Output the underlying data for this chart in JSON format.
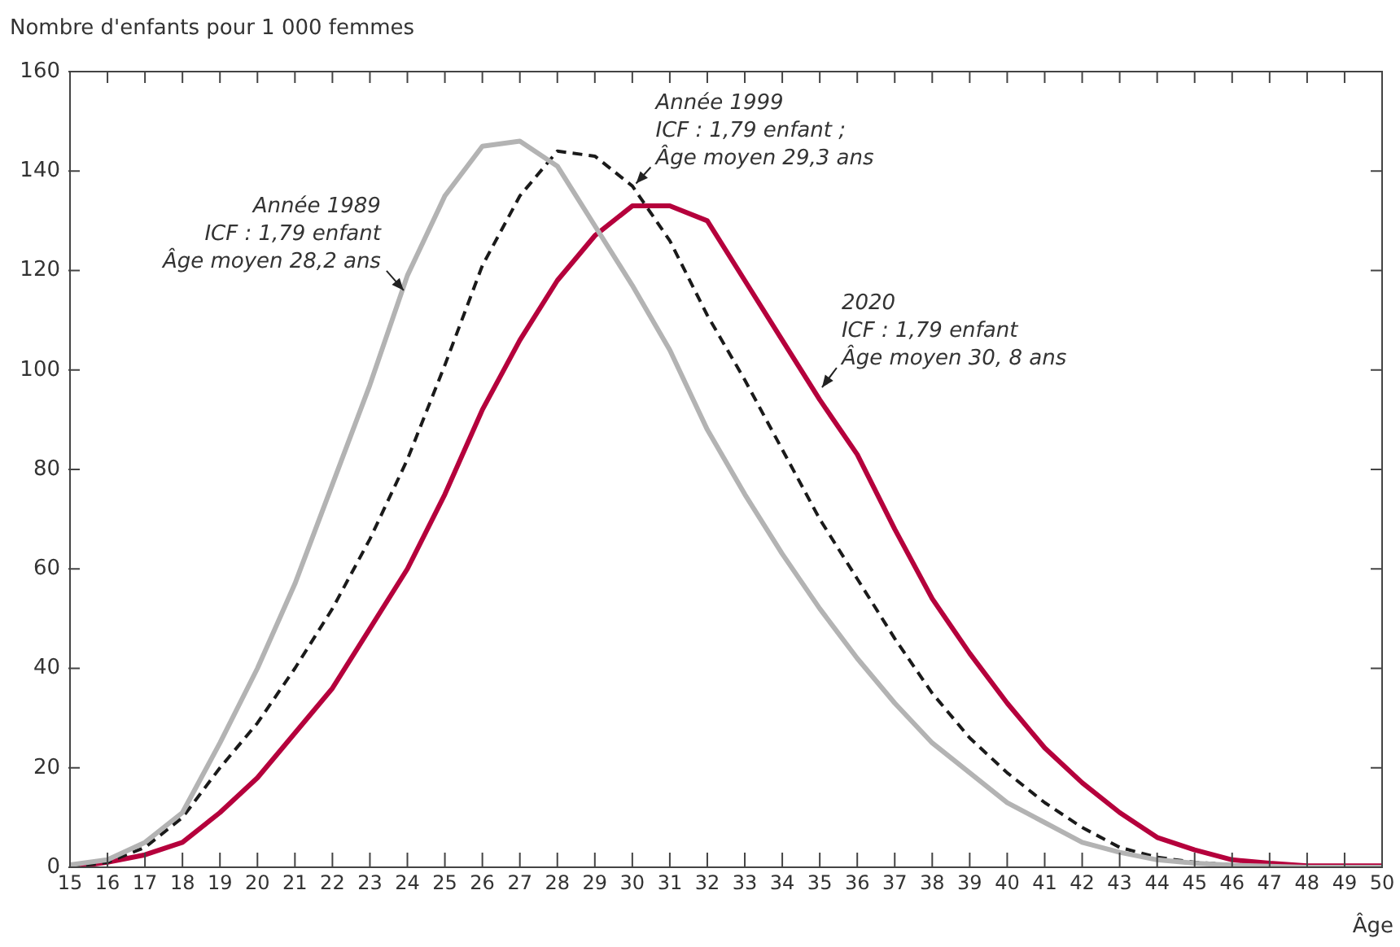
{
  "chart_data": {
    "type": "line",
    "ylabel": "Nombre d'enfants pour 1 000 femmes",
    "xlabel": "Âge",
    "x": [
      15,
      16,
      17,
      18,
      19,
      20,
      21,
      22,
      23,
      24,
      25,
      26,
      27,
      28,
      29,
      30,
      31,
      32,
      33,
      34,
      35,
      36,
      37,
      38,
      39,
      40,
      41,
      42,
      43,
      44,
      45,
      46,
      47,
      48,
      49,
      50
    ],
    "series": [
      {
        "color": "#b3b3b3",
        "line_style": "solid",
        "values": [
          0.5,
          1.5,
          5,
          11,
          25,
          40,
          57,
          77,
          97,
          119,
          135,
          145,
          146,
          141,
          129,
          117,
          104,
          88,
          75,
          63,
          52,
          42,
          33,
          25,
          19,
          13,
          9,
          5,
          3,
          1.5,
          0.8,
          0.4,
          0.2,
          0,
          0,
          0
        ]
      },
      {
        "color": "#1a1a1a",
        "line_style": "dashed",
        "values": [
          0,
          1,
          4,
          10,
          20,
          29,
          40,
          52,
          66,
          82,
          101,
          121,
          135,
          144,
          143,
          137,
          126,
          111,
          98,
          84,
          70,
          58,
          46,
          35,
          26,
          19,
          13,
          8,
          4,
          2,
          1,
          0.5,
          0.2,
          0,
          0,
          0
        ]
      },
      {
        "color": "#b5003c",
        "line_style": "solid",
        "values": [
          0,
          1,
          2.5,
          5,
          11,
          18,
          27,
          36,
          48,
          60,
          75,
          92,
          106,
          118,
          127,
          133,
          133,
          130,
          118,
          106,
          94,
          83,
          68,
          54,
          43,
          33,
          24,
          17,
          11,
          6,
          3.5,
          1.5,
          0.8,
          0.3,
          0.3,
          0.3
        ]
      }
    ],
    "annotations": [
      {
        "text": "Année 1989\nICF : 1,79 enfant\nÂge moyen 28,2 ans",
        "x": 23.9,
        "y": 116
      },
      {
        "text": "Année 1999\nICF : 1,79 enfant ;\nÂge moyen 29,3 ans",
        "x": 30.1,
        "y": 137.5
      },
      {
        "text": "2020\nICF : 1,79 enfant\nÂge moyen 30, 8 ans",
        "x": 35.06,
        "y": 96.5
      }
    ],
    "xlim": [
      15,
      50
    ],
    "xticks": [
      15,
      16,
      17,
      18,
      19,
      20,
      21,
      22,
      23,
      24,
      25,
      26,
      27,
      28,
      29,
      30,
      31,
      32,
      33,
      34,
      35,
      36,
      37,
      38,
      39,
      40,
      41,
      42,
      43,
      44,
      45,
      46,
      47,
      48,
      49,
      50
    ],
    "ylim": [
      0,
      160
    ],
    "yticks": [
      0,
      20,
      40,
      60,
      80,
      100,
      120,
      140,
      160
    ],
    "grid": false,
    "legend": false,
    "marker": "none"
  }
}
